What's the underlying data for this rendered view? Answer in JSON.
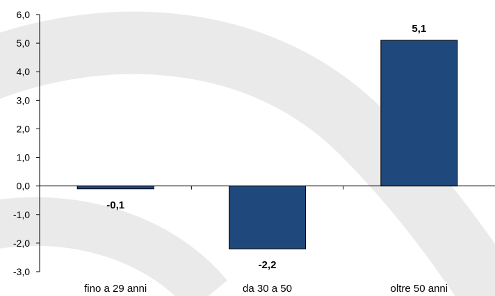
{
  "chart_data": {
    "type": "bar",
    "categories": [
      "fino a 29 anni",
      "da 30 a 50",
      "oltre 50 anni"
    ],
    "values": [
      -0.1,
      -2.2,
      5.1
    ],
    "data_labels": [
      "-0,1",
      "-2,2",
      "5,1"
    ],
    "ylim": [
      -3.0,
      6.0
    ],
    "y_ticks": [
      6.0,
      5.0,
      4.0,
      3.0,
      2.0,
      1.0,
      0.0,
      -1.0,
      -2.0,
      -3.0
    ],
    "y_tick_labels": [
      "6,0",
      "5,0",
      "4,0",
      "3,0",
      "2,0",
      "1,0",
      "0,0",
      "-1,0",
      "-2,0",
      "-3,0"
    ],
    "grid": false,
    "bar_color": "#1f497d",
    "watermark_color": "#e6e6e6"
  }
}
